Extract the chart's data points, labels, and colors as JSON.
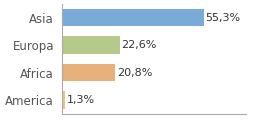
{
  "categories": [
    "America",
    "Africa",
    "Europa",
    "Asia"
  ],
  "values": [
    1.3,
    20.8,
    22.6,
    55.3
  ],
  "labels": [
    "1,3%",
    "20,8%",
    "22,6%",
    "55,3%"
  ],
  "bar_colors": [
    "#e8c97a",
    "#c8d89a",
    "#c8d89a",
    "#7aaad8"
  ],
  "bar_colors_exact": [
    "#e8c97a",
    "#e8b07a",
    "#b5c98a",
    "#7aaad8"
  ],
  "background_color": "#ffffff",
  "xlim": [
    0,
    72
  ],
  "bar_height": 0.65,
  "label_fontsize": 8,
  "tick_fontsize": 8.5,
  "spine_color": "#aaaaaa"
}
